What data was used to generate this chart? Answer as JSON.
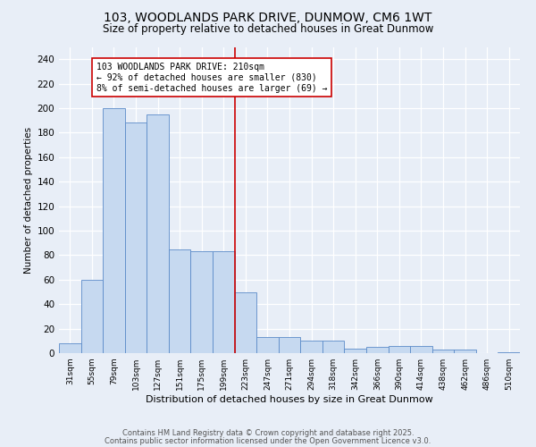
{
  "title_line1": "103, WOODLANDS PARK DRIVE, DUNMOW, CM6 1WT",
  "title_line2": "Size of property relative to detached houses in Great Dunmow",
  "xlabel": "Distribution of detached houses by size in Great Dunmow",
  "ylabel": "Number of detached properties",
  "categories": [
    "31sqm",
    "55sqm",
    "79sqm",
    "103sqm",
    "127sqm",
    "151sqm",
    "175sqm",
    "199sqm",
    "223sqm",
    "247sqm",
    "271sqm",
    "294sqm",
    "318sqm",
    "342sqm",
    "366sqm",
    "390sqm",
    "414sqm",
    "438sqm",
    "462sqm",
    "486sqm",
    "510sqm"
  ],
  "values": [
    8,
    60,
    200,
    188,
    195,
    85,
    83,
    83,
    50,
    13,
    13,
    10,
    10,
    4,
    5,
    6,
    6,
    3,
    3,
    0,
    1
  ],
  "bar_color": "#c6d9f0",
  "bar_edge_color": "#5b8bc9",
  "vline_x_index": 8,
  "vline_color": "#cc0000",
  "annotation_text": "103 WOODLANDS PARK DRIVE: 210sqm\n← 92% of detached houses are smaller (830)\n8% of semi-detached houses are larger (69) →",
  "annotation_box_color": "#ffffff",
  "annotation_box_edge": "#cc0000",
  "ylim": [
    0,
    250
  ],
  "yticks": [
    0,
    20,
    40,
    60,
    80,
    100,
    120,
    140,
    160,
    180,
    200,
    220,
    240
  ],
  "footnote1": "Contains HM Land Registry data © Crown copyright and database right 2025.",
  "footnote2": "Contains public sector information licensed under the Open Government Licence v3.0.",
  "background_color": "#e8eef7",
  "grid_color": "#ffffff"
}
